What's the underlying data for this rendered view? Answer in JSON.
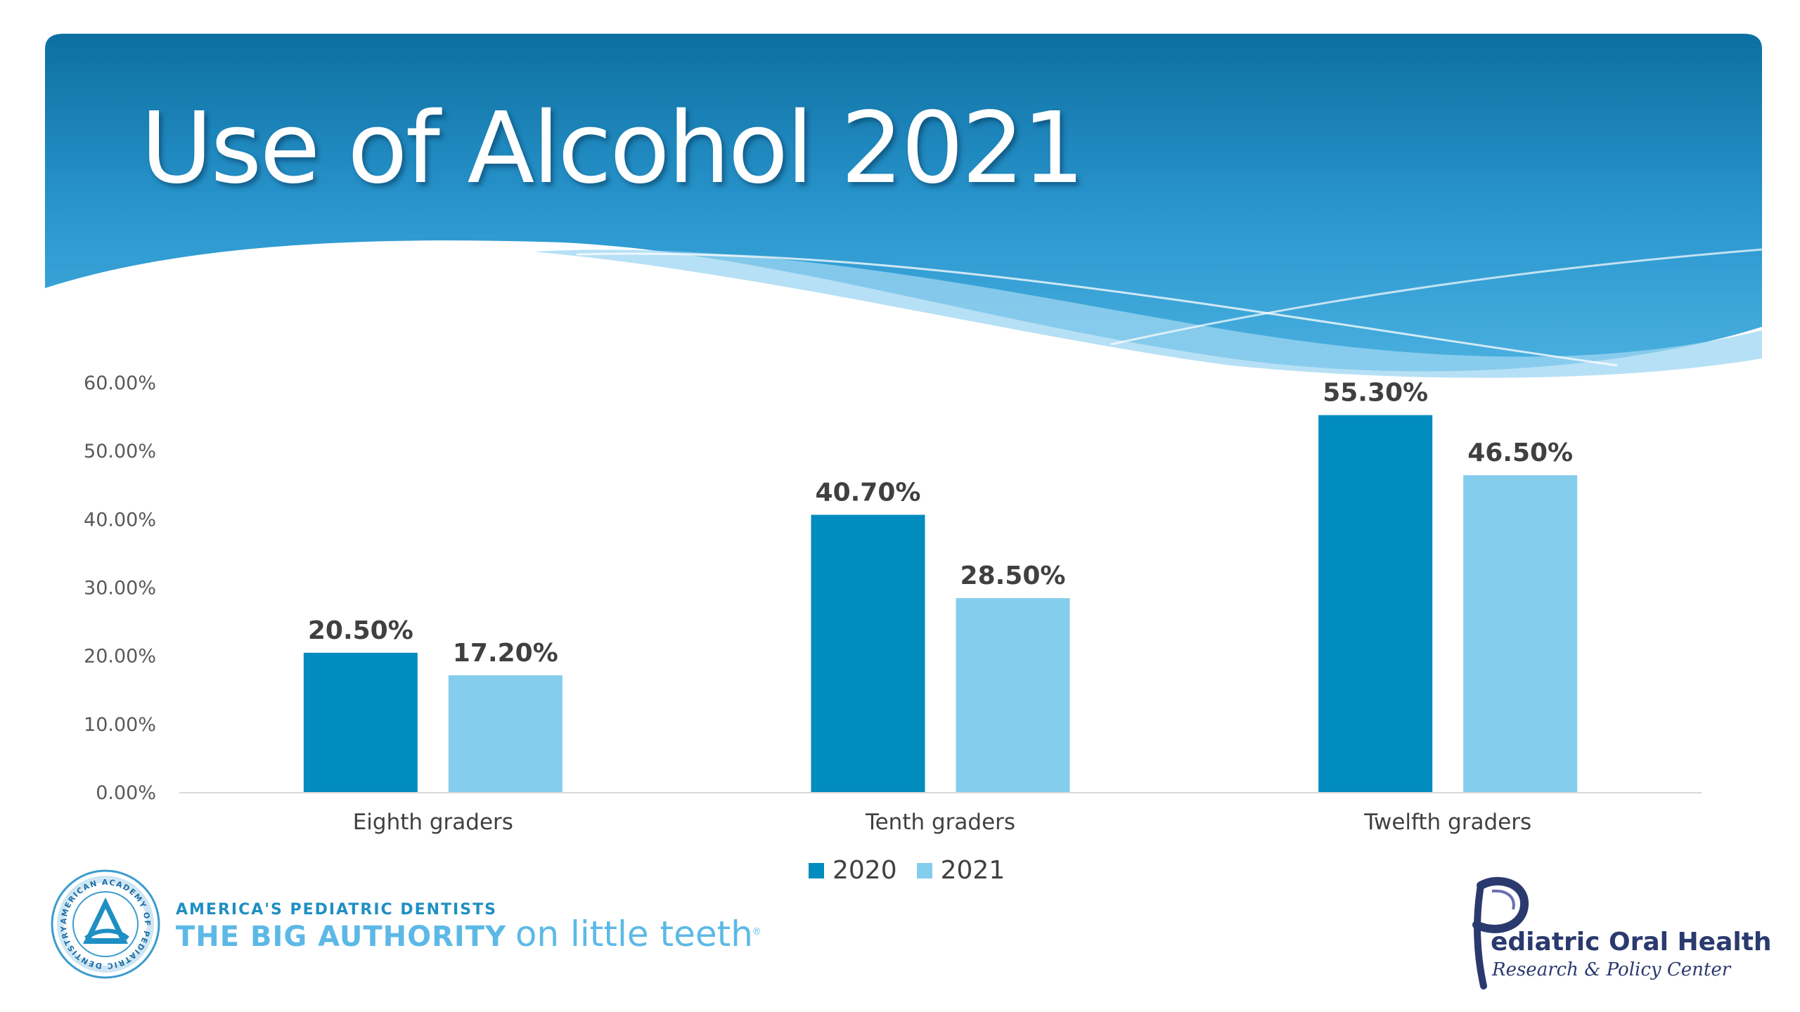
{
  "slide": {
    "title": "Use of Alcohol 2021"
  },
  "colors": {
    "header_dark": "#0d6fa1",
    "header_light": "#4ab0df",
    "series_2020": "#008cbf",
    "series_2021": "#85cdec",
    "axis_line": "#d9d9d9"
  },
  "chart_data": {
    "type": "bar",
    "categories": [
      "Eighth graders",
      "Tenth graders",
      "Twelfth graders"
    ],
    "series": [
      {
        "name": "2020",
        "values": [
          20.5,
          40.7,
          55.3
        ],
        "labels": [
          "20.50%",
          "40.70%",
          "55.30%"
        ],
        "color": "#008cbf"
      },
      {
        "name": "2021",
        "values": [
          17.2,
          28.5,
          46.5
        ],
        "labels": [
          "17.20%",
          "28.50%",
          "46.50%"
        ],
        "color": "#85cdec"
      }
    ],
    "ylim": [
      0,
      60
    ],
    "yticks": [
      0,
      10,
      20,
      30,
      40,
      50,
      60
    ],
    "ytick_labels": [
      "0.00%",
      "10.00%",
      "20.00%",
      "30.00%",
      "40.00%",
      "50.00%",
      "60.00%"
    ],
    "grid": false,
    "legend_position": "bottom"
  },
  "footer": {
    "aapd": {
      "logo_text": "AMERICAN ACADEMY OF PEDIATRIC DENTISTRY",
      "tagline": "AMERICA'S PEDIATRIC DENTISTS",
      "slogan_strong": "THE BIG AUTHORITY",
      "slogan_light": "on little teeth",
      "registered": "®"
    },
    "pohrpc": {
      "name": "ediatric Oral Health",
      "sub": "Research & Policy Center"
    }
  }
}
